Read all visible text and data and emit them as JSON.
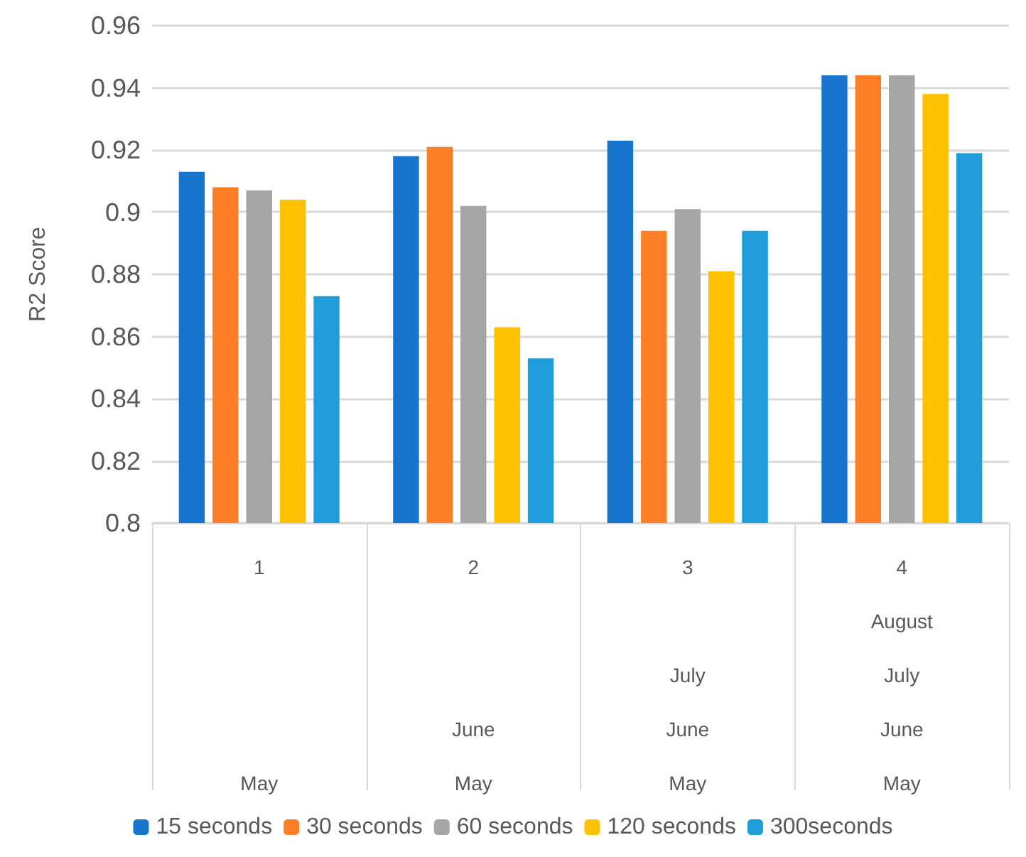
{
  "chart_data": {
    "type": "bar",
    "ylabel": "R2 Score",
    "categories": [
      "1\nMay",
      "2\nJune\nMay",
      "3\nJuly\nJune\nMay",
      "4\nAugust\nJuly\nJune\nMay"
    ],
    "series": [
      {
        "name": "15 seconds",
        "color": "#1874cd",
        "values": [
          0.913,
          0.918,
          0.923,
          0.944
        ]
      },
      {
        "name": "30 seconds",
        "color": "#ff7f27",
        "values": [
          0.908,
          0.921,
          0.894,
          0.944
        ]
      },
      {
        "name": "60 seconds",
        "color": "#a6a6a6",
        "values": [
          0.907,
          0.902,
          0.901,
          0.944
        ]
      },
      {
        "name": "120 seconds",
        "color": "#ffc000",
        "values": [
          0.904,
          0.863,
          0.881,
          0.938
        ]
      },
      {
        "name": "300seconds",
        "color": "#1f9ed9",
        "values": [
          0.873,
          0.853,
          0.894,
          0.919
        ]
      }
    ],
    "ylim": [
      0.8,
      0.96
    ],
    "yticks": [
      0.8,
      0.82,
      0.84,
      0.86,
      0.88,
      0.9,
      0.92,
      0.94,
      0.96
    ],
    "grid": "y",
    "legend": "bottom"
  }
}
